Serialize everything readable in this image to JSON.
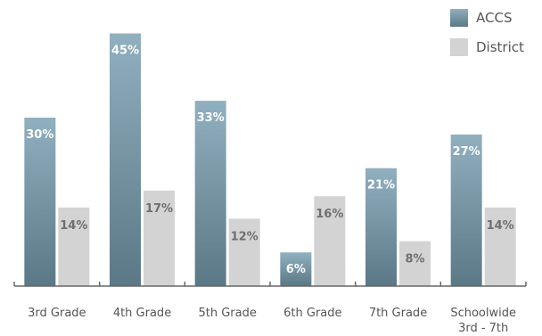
{
  "chart_data": {
    "type": "bar",
    "categories": [
      [
        "3rd Grade"
      ],
      [
        "4th Grade"
      ],
      [
        "5th Grade"
      ],
      [
        "6th Grade"
      ],
      [
        "7th Grade"
      ],
      [
        "Schoolwide",
        "3rd - 7th"
      ]
    ],
    "series": [
      {
        "name": "ACCS",
        "values": [
          30,
          45,
          33,
          6,
          21,
          27
        ],
        "labels": [
          "30%",
          "45%",
          "33%",
          "6%",
          "21%",
          "27%"
        ],
        "color_top": "#91b0bf",
        "color_bottom": "#5a7885",
        "label_color": "#ffffff"
      },
      {
        "name": "District",
        "values": [
          14,
          17,
          12,
          16,
          8,
          14
        ],
        "labels": [
          "14%",
          "17%",
          "12%",
          "16%",
          "8%",
          "14%"
        ],
        "color": "#d3d3d3",
        "label_color": "#6f6f6f"
      }
    ],
    "ylim": [
      0,
      50
    ],
    "legend_position": "top-right",
    "grid": false,
    "axis_color": "#666666"
  }
}
